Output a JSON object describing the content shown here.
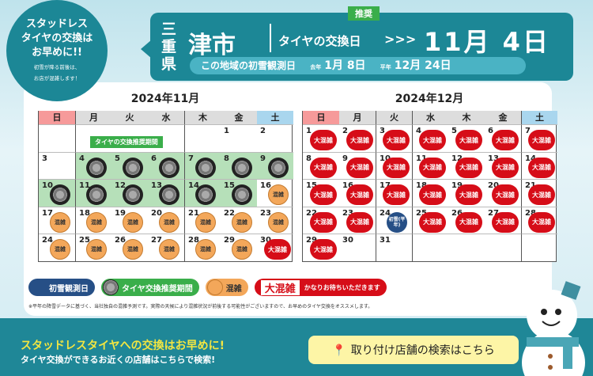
{
  "bubble": {
    "lines": [
      "スタッドレス",
      "タイヤの交換は",
      "お早めに!!"
    ],
    "sub": [
      "初雪が降る前後は、",
      "お店が混雑します！"
    ]
  },
  "banner": {
    "prefecture": "三重県",
    "city": "津市",
    "label": "タイヤの交換日",
    "arrows": ">>>",
    "recommend_badge": "推奨",
    "date": "11月 4日",
    "first_snow_label": "この地域の初雪観測日",
    "last_year_label": "去年",
    "last_year_date": "1月 8日",
    "avg_label": "平年",
    "avg_date": "12月 24日"
  },
  "weekdays": [
    "日",
    "月",
    "火",
    "水",
    "木",
    "金",
    "土"
  ],
  "tire_period_tag": "タイヤの交換推奨期間",
  "status_labels": {
    "busy": "混雑",
    "vbusy": "大混雑",
    "snow": "初雪(平年)"
  },
  "calendars": [
    {
      "title": "2024年11月",
      "start": 5,
      "days": 30,
      "status": [
        "",
        "",
        "",
        "tire",
        "tire",
        "tire",
        "tire",
        "tire",
        "tire",
        "tire",
        "tire",
        "tire",
        "tire",
        "tire",
        "tire",
        "busy",
        "busy",
        "busy",
        "busy",
        "busy",
        "busy",
        "busy",
        "busy",
        "busy",
        "busy",
        "busy",
        "busy",
        "busy",
        "busy",
        "vbusy"
      ]
    },
    {
      "title": "2024年12月",
      "start": 0,
      "days": 31,
      "status": [
        "vbusy",
        "vbusy",
        "vbusy",
        "vbusy",
        "vbusy",
        "vbusy",
        "vbusy",
        "vbusy",
        "vbusy",
        "vbusy",
        "vbusy",
        "vbusy",
        "vbusy",
        "vbusy",
        "vbusy",
        "vbusy",
        "vbusy",
        "vbusy",
        "vbusy",
        "vbusy",
        "vbusy",
        "vbusy",
        "vbusy",
        "snow",
        "vbusy",
        "vbusy",
        "vbusy",
        "vbusy",
        "vbusy",
        "",
        ""
      ]
    }
  ],
  "legend": {
    "snow": "初雪観測日",
    "tire": "タイヤ交換推奨期間",
    "busy": "混雑",
    "vbusy": "大混雑",
    "vbusy_note": "かなりお待ちいただきます"
  },
  "note": "※平年の降雪データに基づく、当社独自の混雑予測です。実際の天候により混雑状況が前後する可能性がございますので、お早めのタイヤ交換をオススメします。",
  "footer": {
    "headline": "スタッドレスタイヤへの交換はお早めに!",
    "sub": "タイヤ交換ができるお近くの店舗はこちらで検索!",
    "button": "取り付け店舗の検索はこちら"
  },
  "colors": {
    "teal": "#1c8796",
    "green": "#3aae4a",
    "orange": "#f3a75a",
    "red": "#d60d18",
    "navy": "#264f86"
  }
}
